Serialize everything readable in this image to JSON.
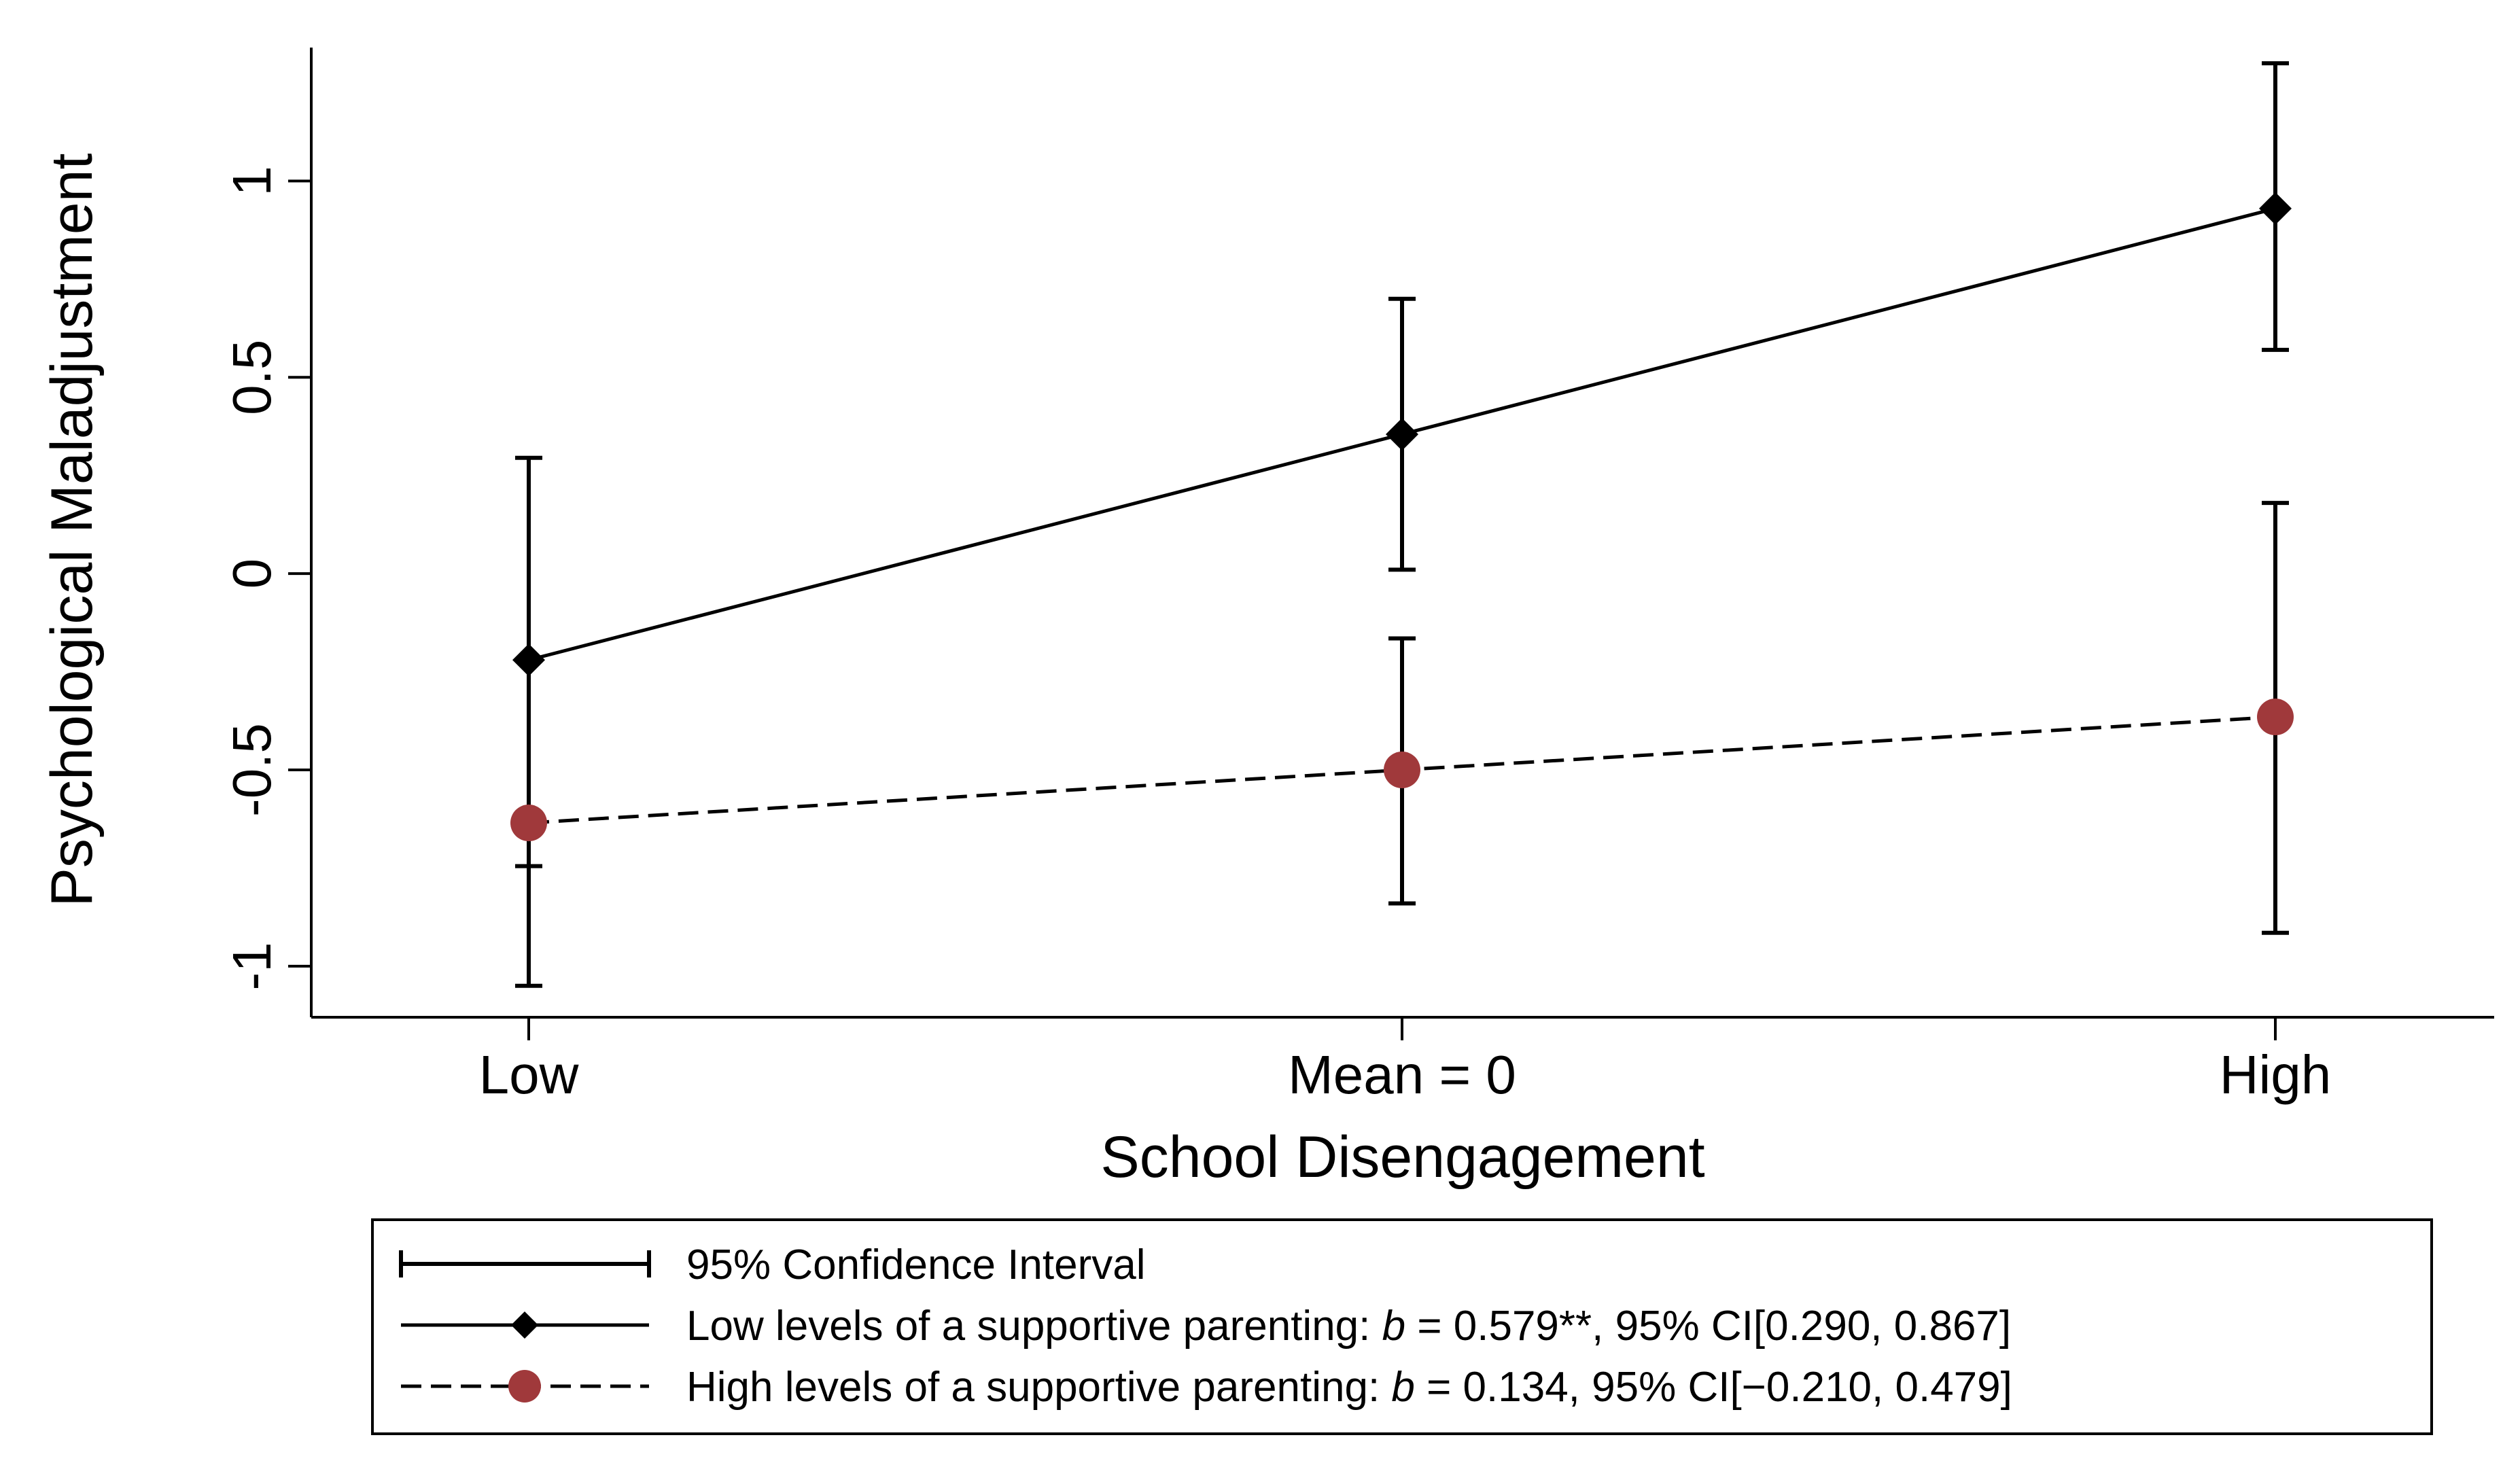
{
  "chart_data": {
    "type": "line",
    "title": "",
    "xlabel": "School Disengagement",
    "ylabel": "Psychological Maladjustment",
    "categories": [
      "Low",
      "Mean = 0",
      "High"
    ],
    "ylim": [
      -1.13,
      1.34
    ],
    "yticks": [
      {
        "value": -1,
        "label": "-1"
      },
      {
        "value": -0.5,
        "label": "-0.5"
      },
      {
        "value": 0,
        "label": "0"
      },
      {
        "value": 0.5,
        "label": "0.5"
      },
      {
        "value": 1,
        "label": "1"
      }
    ],
    "grid": false,
    "legend_position": "bottom",
    "series": [
      {
        "name": "Low levels of a supportive parenting",
        "stat_prefix": ": ",
        "stat_symbol": "b",
        "stat_suffix": " = 0.579**, 95% CI[0.290, 0.867]",
        "line_style": "solid",
        "marker": "diamond",
        "color": "#000000",
        "values": [
          -0.22,
          0.355,
          0.93
        ],
        "ci_lower": [
          -1.05,
          0.01,
          0.57
        ],
        "ci_upper": [
          0.295,
          0.7,
          1.3
        ]
      },
      {
        "name": "High levels of a supportive parenting",
        "stat_prefix": ": ",
        "stat_symbol": "b",
        "stat_suffix": " = 0.134, 95% CI[−0.210, 0.479]",
        "line_style": "dashed",
        "marker": "circle",
        "color": "#a0393b",
        "values": [
          -0.635,
          -0.5,
          -0.365
        ],
        "ci_lower": [
          -0.745,
          -0.84,
          -0.915
        ],
        "ci_upper": [
          -0.635,
          -0.165,
          0.18
        ]
      }
    ],
    "legend_ci_label": "95% Confidence Interval"
  }
}
